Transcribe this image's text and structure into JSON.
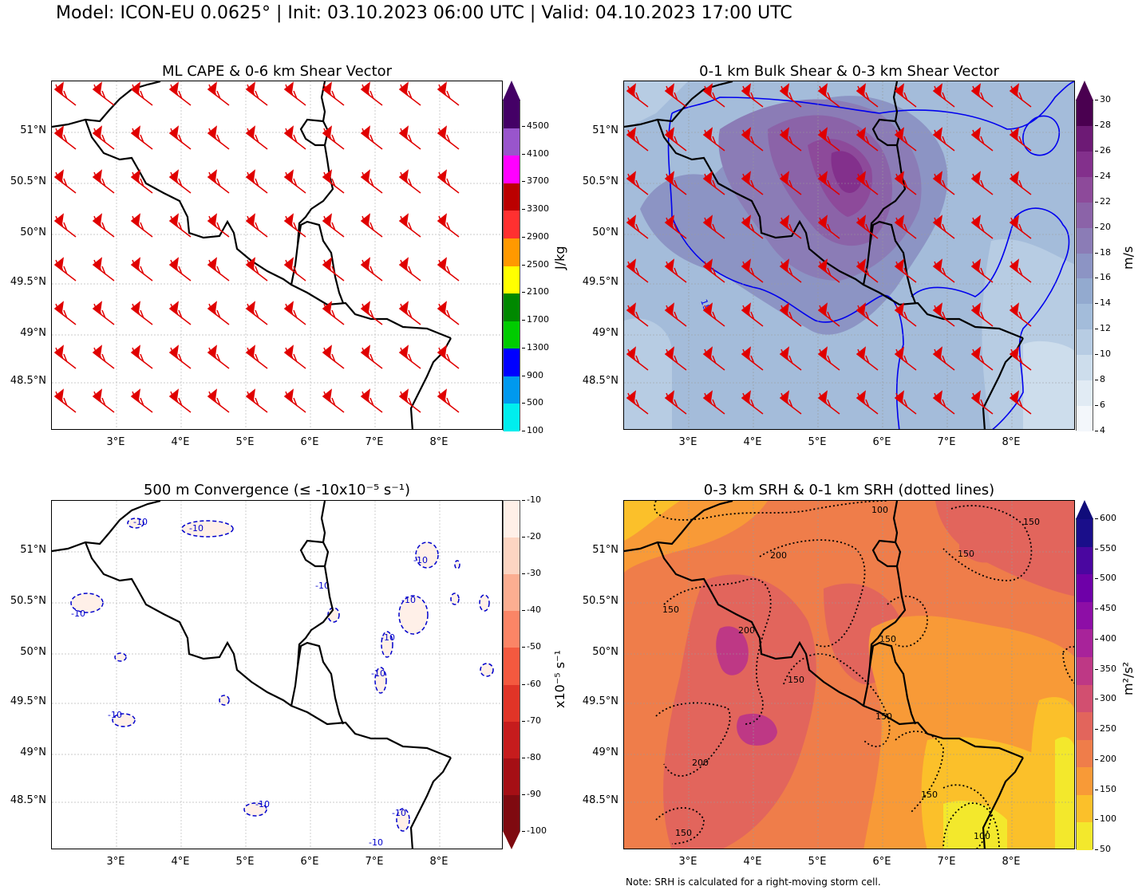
{
  "suptitle": "Model: ICON-EU 0.0625° | Init: 03.10.2023 06:00 UTC | Valid: 04.10.2023 17:00 UTC",
  "note": "Note: SRH is calculated for a right-moving storm cell.",
  "lat_labels": [
    "51°N",
    "50.5°N",
    "50°N",
    "49.5°N",
    "49°N",
    "48.5°N"
  ],
  "lon_labels": [
    "3°E",
    "4°E",
    "5°E",
    "6°E",
    "7°E",
    "8°E"
  ],
  "panels": {
    "cape": {
      "title": "ML CAPE & 0-6 km Shear Vector",
      "cbar_label": "J/kg",
      "ticks": [
        "4500",
        "4100",
        "3700",
        "3300",
        "2900",
        "2500",
        "2100",
        "1700",
        "1300",
        "900",
        "500",
        "100"
      ],
      "colors": [
        "#440066",
        "#9955cc",
        "#ff00ff",
        "#bb0000",
        "#ff3030",
        "#ff9900",
        "#ffff00",
        "#008800",
        "#00cc00",
        "#0000ff",
        "#0099ee",
        "#00eeee"
      ],
      "top_color": "#440066"
    },
    "shear": {
      "title": "0-1 km Bulk Shear & 0-3 km Shear Vector",
      "cbar_label": "m/s",
      "ticks": [
        "30",
        "28",
        "26",
        "24",
        "22",
        "20",
        "18",
        "16",
        "14",
        "12",
        "10",
        "8",
        "6",
        "4"
      ],
      "colors": [
        "#4a0050",
        "#6d1a75",
        "#83308c",
        "#8d4a9a",
        "#8b63a8",
        "#8b7cb6",
        "#8c94c4",
        "#93aacf",
        "#a3bcda",
        "#b7cce3",
        "#cdddec",
        "#e1ebf4",
        "#f3f7fb"
      ],
      "top_color": "#4a0050",
      "contour_label": "15"
    },
    "conv": {
      "title": "500 m Convergence (≤ -10x10⁻⁵ s⁻¹)",
      "cbar_label": "x10⁻⁵ s⁻¹",
      "ticks": [
        "-10",
        "-20",
        "-30",
        "-40",
        "-50",
        "-60",
        "-70",
        "-80",
        "-90",
        "-100"
      ],
      "colors": [
        "#fff0e8",
        "#fdd5c2",
        "#fcae91",
        "#fb8566",
        "#f4593f",
        "#e03427",
        "#c61c1d",
        "#a50f15",
        "#7f0a10"
      ],
      "bottom_color": "#7f0a10",
      "contour_label": "-10"
    },
    "srh": {
      "title": "0-3 km SRH & 0-1 km SRH (dotted lines)",
      "cbar_label": "m²/s²",
      "ticks": [
        "600",
        "550",
        "500",
        "450",
        "400",
        "350",
        "300",
        "250",
        "200",
        "150",
        "100",
        "50"
      ],
      "colors": [
        "#1a0e8a",
        "#4a06a0",
        "#6e00a8",
        "#8d0ea6",
        "#a8239a",
        "#be3885",
        "#d24f70",
        "#e2655c",
        "#ef7d4a",
        "#f89a37",
        "#fbc02a",
        "#f3e82c"
      ],
      "top_color": "#100c7a",
      "contour_labels": [
        "100",
        "150",
        "200",
        "150",
        "150",
        "200",
        "150",
        "150",
        "150",
        "200",
        "150",
        "100",
        "150"
      ]
    }
  }
}
